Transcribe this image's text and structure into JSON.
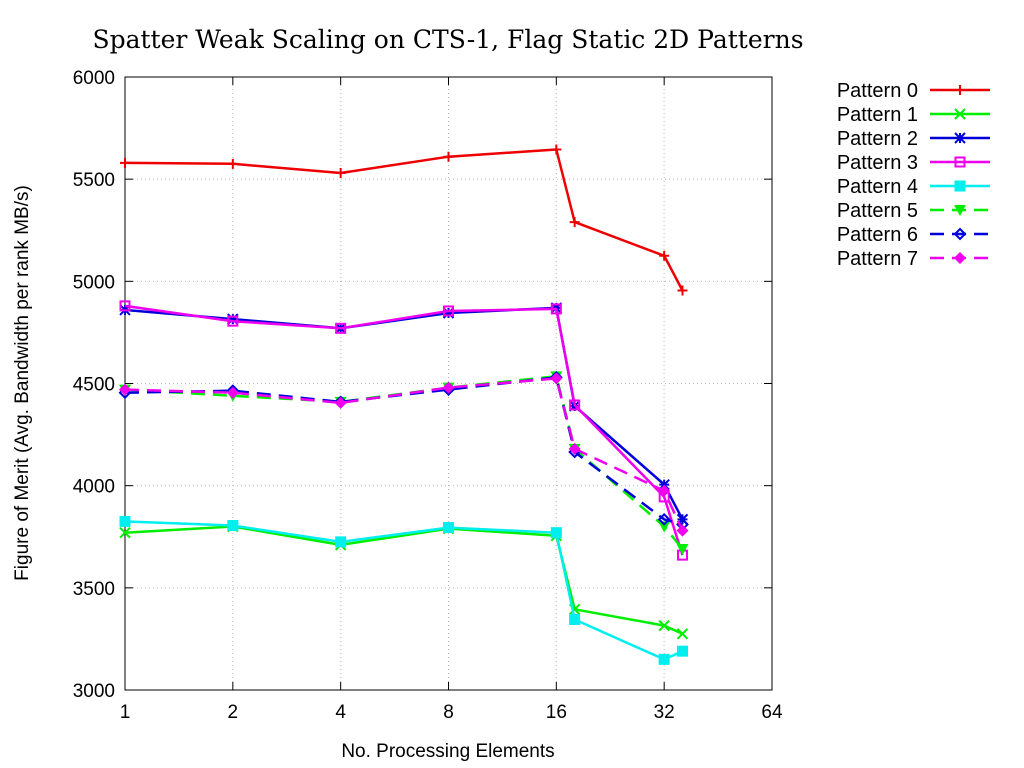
{
  "chart_data": {
    "type": "line",
    "title": "Spatter Weak Scaling on CTS-1, Flag Static 2D Patterns",
    "xlabel": "No. Processing Elements",
    "ylabel": "Figure of Merit (Avg. Bandwidth per rank MB/s)",
    "x_scale": "log2",
    "xlim": [
      1,
      64
    ],
    "ylim": [
      3000,
      6000
    ],
    "x_ticks": [
      1,
      2,
      4,
      8,
      16,
      32,
      64
    ],
    "x_tick_labels": [
      "1",
      "2",
      "4",
      "8",
      "16",
      "32",
      "64"
    ],
    "y_ticks": [
      3000,
      3500,
      4000,
      4500,
      5000,
      5500,
      6000
    ],
    "y_tick_labels": [
      "3000",
      "3500",
      "4000",
      "4500",
      "5000",
      "5500",
      "6000"
    ],
    "grid": true,
    "legend_position": "outside-right-top",
    "x": [
      1,
      2,
      4,
      8,
      16,
      18,
      32,
      36
    ],
    "series": [
      {
        "name": "Pattern 0",
        "color": "#ee0000",
        "dash": "solid",
        "marker": "plus",
        "values": [
          5580,
          5575,
          5530,
          5610,
          5645,
          5290,
          5125,
          4955
        ]
      },
      {
        "name": "Pattern 1",
        "color": "#00ee00",
        "dash": "solid",
        "marker": "x",
        "values": [
          3770,
          3800,
          3710,
          3790,
          3755,
          3395,
          3315,
          3275
        ]
      },
      {
        "name": "Pattern 2",
        "color": "#0000dd",
        "dash": "solid",
        "marker": "star",
        "values": [
          4860,
          4815,
          4770,
          4845,
          4870,
          4390,
          4005,
          3835
        ]
      },
      {
        "name": "Pattern 3",
        "color": "#ee00ee",
        "dash": "solid",
        "marker": "square-open",
        "values": [
          4880,
          4805,
          4770,
          4855,
          4865,
          4395,
          3945,
          3660
        ]
      },
      {
        "name": "Pattern 4",
        "color": "#00eeee",
        "dash": "solid",
        "marker": "square-filled",
        "values": [
          3825,
          3805,
          3725,
          3795,
          3770,
          3345,
          3150,
          3190
        ]
      },
      {
        "name": "Pattern 5",
        "color": "#00ee00",
        "dash": "dashed",
        "marker": "triangle-down-filled",
        "values": [
          4470,
          4440,
          4410,
          4480,
          4535,
          4180,
          3800,
          3690
        ]
      },
      {
        "name": "Pattern 6",
        "color": "#0000dd",
        "dash": "dashed",
        "marker": "diamond-open",
        "values": [
          4455,
          4465,
          4410,
          4470,
          4530,
          4165,
          3835,
          3810
        ]
      },
      {
        "name": "Pattern 7",
        "color": "#ee00ee",
        "dash": "dashed",
        "marker": "diamond-filled",
        "values": [
          4470,
          4455,
          4405,
          4480,
          4525,
          4180,
          3975,
          3780
        ]
      }
    ]
  }
}
